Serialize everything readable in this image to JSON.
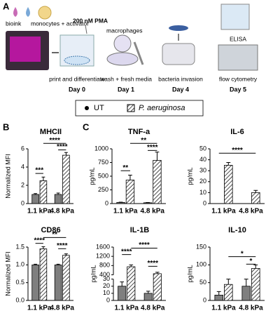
{
  "diagram": {
    "label": "A",
    "bioink": "bioink",
    "monocytes": "monocytes + activator",
    "pma": "200 nM PMA",
    "macrophages": "macrophages",
    "elisa": "ELISA",
    "steps": [
      {
        "caption": "print and differentiate",
        "day": "Day 0"
      },
      {
        "caption": "wash + fresh media",
        "day": "Day 1"
      },
      {
        "caption": "bacteria invasion",
        "day": "Day 4"
      },
      {
        "caption": "flow cytometry",
        "day": "Day 5"
      }
    ]
  },
  "panel_labels": [
    "B",
    "C"
  ],
  "chart_data": [
    {
      "type": "bar",
      "title": "MHCII",
      "ylabel": "Normalized MFI",
      "categories": [
        "1.1 kPa",
        "4.8 kPa"
      ],
      "series": [
        {
          "name": "UT",
          "color": "#7f7f7f",
          "values": [
            1.0,
            1.0
          ],
          "errors": [
            0.1,
            0.15
          ]
        },
        {
          "name": "P. aeruginosa",
          "color": "#ffffff",
          "hatch": true,
          "values": [
            2.5,
            5.3
          ],
          "errors": [
            0.4,
            0.3
          ]
        }
      ],
      "ylim": [
        0,
        6
      ],
      "yticks": [
        0,
        2,
        4,
        6
      ],
      "annotations": [
        "***",
        "****",
        "****"
      ]
    },
    {
      "type": "bar",
      "title": "CD86",
      "ylabel": "Normalized MFI",
      "categories": [
        "1.1 kPa",
        "4.8 kPa"
      ],
      "series": [
        {
          "color": "#7f7f7f",
          "values": [
            1.0,
            1.0
          ],
          "errors": [
            0.02,
            0.02
          ]
        },
        {
          "color": "#ffffff",
          "hatch": true,
          "values": [
            1.45,
            1.27
          ],
          "errors": [
            0.06,
            0.04
          ]
        }
      ],
      "ylim": [
        0,
        1.5
      ],
      "yticks": [
        {
          "value": 0,
          "label": "0.0"
        },
        0.5,
        {
          "value": 1,
          "label": "1.0"
        },
        1.5
      ],
      "annotations": [
        "****",
        "****",
        "**"
      ]
    },
    {
      "type": "bar",
      "title": "TNF-a",
      "ylabel": "pg/mL",
      "categories": [
        "1.1 kPa",
        "4.8 kPa"
      ],
      "series": [
        {
          "color": "#7f7f7f",
          "values": [
            20,
            15
          ],
          "errors": [
            5,
            5
          ]
        },
        {
          "color": "#ffffff",
          "hatch": true,
          "values": [
            430,
            790
          ],
          "errors": [
            90,
            150
          ]
        }
      ],
      "ylim": [
        0,
        1000
      ],
      "yticks": [
        0,
        250,
        500,
        750,
        1000
      ],
      "annotations": [
        "**",
        "****",
        "**"
      ]
    },
    {
      "type": "bar",
      "title": "IL-6",
      "ylabel": "pg/mL",
      "categories": [
        "1.1 kPa",
        "4.8 kPa"
      ],
      "series": [
        {
          "color": "#7f7f7f",
          "values": [
            0,
            0
          ],
          "errors": [
            0,
            0
          ]
        },
        {
          "color": "#ffffff",
          "hatch": true,
          "values": [
            35,
            10
          ],
          "errors": [
            2.5,
            2
          ]
        }
      ],
      "ylim": [
        0,
        50
      ],
      "yticks": [
        0,
        10,
        20,
        30,
        40,
        50
      ],
      "annotations": [
        "****"
      ]
    },
    {
      "type": "bar",
      "title": "IL-1B",
      "ylabel": "pg/mL",
      "categories": [
        "1.1 kPa",
        "4.8 kPa"
      ],
      "series": [
        {
          "color": "#7f7f7f",
          "values": [
            20,
            10
          ],
          "errors": [
            6,
            3
          ]
        },
        {
          "color": "#ffffff",
          "hatch": true,
          "values": [
            750,
            450
          ],
          "errors": [
            80,
            60
          ]
        }
      ],
      "ylim": [
        0,
        1600
      ],
      "axis_break": [
        30,
        400
      ],
      "yticks": [
        0,
        10,
        20,
        30,
        400,
        800,
        1200,
        1600
      ],
      "annotations": [
        "****",
        "****",
        "****"
      ]
    },
    {
      "type": "bar",
      "title": "IL-10",
      "ylabel": "pg/mL",
      "categories": [
        "1.1 kPa",
        "4.8 kPa"
      ],
      "series": [
        {
          "color": "#7f7f7f",
          "values": [
            15,
            40
          ],
          "errors": [
            10,
            20
          ]
        },
        {
          "color": "#ffffff",
          "hatch": true,
          "values": [
            45,
            90
          ],
          "errors": [
            15,
            10
          ]
        }
      ],
      "ylim": [
        0,
        150
      ],
      "yticks": [
        0,
        50,
        100,
        150
      ],
      "annotations": [
        "*",
        "*"
      ]
    }
  ]
}
